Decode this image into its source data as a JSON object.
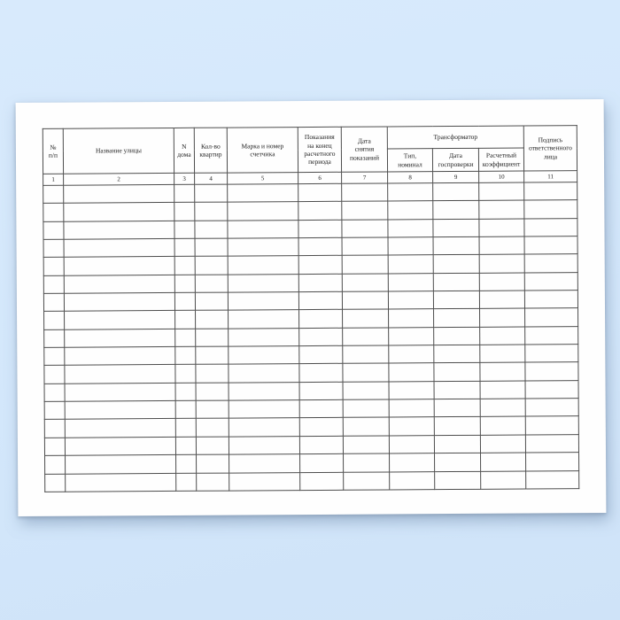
{
  "page": {
    "background_color": "#d3e7fb",
    "paper_color": "#fefefe",
    "grid_color": "#4d4d4d"
  },
  "table": {
    "group_header": {
      "label": "Трансформатор"
    },
    "columns": [
      {
        "num": "1",
        "label": "№\nп/п"
      },
      {
        "num": "2",
        "label": "Название улицы"
      },
      {
        "num": "3",
        "label": "N\nдома"
      },
      {
        "num": "4",
        "label": "Кол-во\nквартир"
      },
      {
        "num": "5",
        "label": "Марка и номер\nсчетчика"
      },
      {
        "num": "6",
        "label": "Показания\nна конец\nрасчетного\nпериода"
      },
      {
        "num": "7",
        "label": "Дата\nснятия\nпоказаний"
      },
      {
        "num": "8",
        "label": "Тип,\nноминал"
      },
      {
        "num": "9",
        "label": "Дата\nгоспроверки"
      },
      {
        "num": "10",
        "label": "Расчетный\nкоэффициент"
      },
      {
        "num": "11",
        "label": "Подпись\nответственного\nлица"
      }
    ],
    "empty_row_count": 17
  }
}
